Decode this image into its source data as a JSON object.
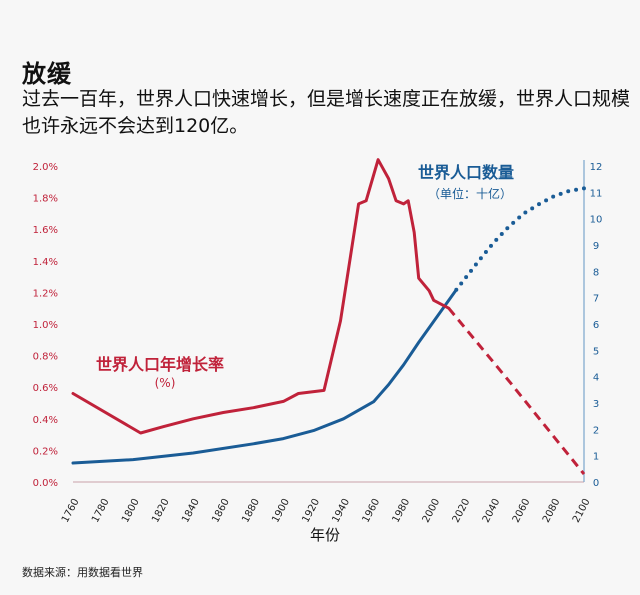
{
  "title": "放缓",
  "subtitle": "过去一百年，世界人口快速增长，但是增长速度正在放缓，世界人口规模也许永远不会达到120亿。",
  "source": "数据来源：用数据看世界",
  "chart_data": {
    "type": "line",
    "xlabel": "年份",
    "xlim": [
      1760,
      2100
    ],
    "x_ticks": [
      1760,
      1780,
      1800,
      1820,
      1840,
      1860,
      1880,
      1900,
      1920,
      1940,
      1960,
      1980,
      2000,
      2020,
      2040,
      2060,
      2080,
      2100
    ],
    "y_left_ticks": [
      "0.0%",
      "0.2%",
      "0.4%",
      "0.6%",
      "0.8%",
      "1.0%",
      "1.2%",
      "1.4%",
      "1.6%",
      "1.8%",
      "2.0%"
    ],
    "y_left_lim": [
      0,
      2.0
    ],
    "y_right_ticks": [
      "0",
      "1",
      "2",
      "3",
      "4",
      "5",
      "6",
      "7",
      "8",
      "9",
      "10",
      "11",
      "12"
    ],
    "y_right_lim": [
      0,
      12
    ],
    "grid": false,
    "series": [
      {
        "name": "世界人口年增长率",
        "unit_label": "(%)",
        "axis": "left",
        "color": "#c0223a",
        "observed": [
          [
            1760,
            0.56
          ],
          [
            1805,
            0.31
          ],
          [
            1820,
            0.35
          ],
          [
            1840,
            0.4
          ],
          [
            1860,
            0.44
          ],
          [
            1880,
            0.47
          ],
          [
            1900,
            0.51
          ],
          [
            1910,
            0.56
          ],
          [
            1927,
            0.58
          ],
          [
            1938,
            1.02
          ],
          [
            1950,
            1.76
          ],
          [
            1955,
            1.78
          ],
          [
            1963,
            2.04
          ],
          [
            1970,
            1.92
          ],
          [
            1975,
            1.78
          ],
          [
            1980,
            1.76
          ],
          [
            1983,
            1.78
          ],
          [
            1987,
            1.58
          ],
          [
            1990,
            1.29
          ],
          [
            1997,
            1.21
          ],
          [
            2000,
            1.15
          ],
          [
            2010,
            1.1
          ]
        ],
        "projected": [
          [
            2010,
            1.1
          ],
          [
            2050,
            0.64
          ],
          [
            2100,
            0.05
          ]
        ]
      },
      {
        "name": "世界人口数量",
        "unit_label": "（单位：十亿）",
        "axis": "right",
        "color": "#1a5c96",
        "observed": [
          [
            1760,
            0.72
          ],
          [
            1800,
            0.85
          ],
          [
            1840,
            1.1
          ],
          [
            1880,
            1.45
          ],
          [
            1900,
            1.65
          ],
          [
            1920,
            1.95
          ],
          [
            1940,
            2.4
          ],
          [
            1960,
            3.05
          ],
          [
            1970,
            3.7
          ],
          [
            1980,
            4.45
          ],
          [
            1990,
            5.3
          ],
          [
            2000,
            6.1
          ],
          [
            2015,
            7.3
          ]
        ],
        "projected": [
          [
            2015,
            7.3
          ],
          [
            2030,
            8.4
          ],
          [
            2040,
            9.1
          ],
          [
            2050,
            9.7
          ],
          [
            2060,
            10.2
          ],
          [
            2070,
            10.55
          ],
          [
            2080,
            10.85
          ],
          [
            2090,
            11.05
          ],
          [
            2100,
            11.15
          ]
        ]
      }
    ]
  }
}
